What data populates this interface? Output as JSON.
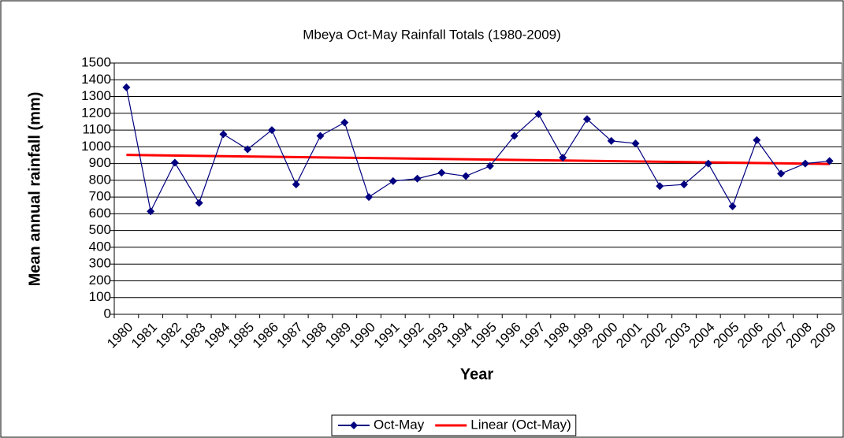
{
  "chart_data": {
    "type": "line",
    "title": "Mbeya Oct-May Rainfall Totals (1980-2009)",
    "xlabel": "Year",
    "ylabel": "Mean annual rainfall (mm)",
    "categories": [
      "1980",
      "1981",
      "1982",
      "1983",
      "1984",
      "1985",
      "1986",
      "1987",
      "1988",
      "1989",
      "1990",
      "1991",
      "1992",
      "1993",
      "1994",
      "1995",
      "1996",
      "1997",
      "1998",
      "1999",
      "2000",
      "2001",
      "2002",
      "2003",
      "2004",
      "2005",
      "2006",
      "2007",
      "2008",
      "2009"
    ],
    "series": [
      {
        "name": "Oct-May",
        "color": "#000080",
        "values": [
          1355,
          615,
          905,
          665,
          1075,
          985,
          1100,
          775,
          1065,
          1145,
          700,
          795,
          810,
          845,
          825,
          885,
          1065,
          1195,
          935,
          1165,
          1035,
          1020,
          765,
          775,
          900,
          645,
          1040,
          840,
          900,
          915
        ],
        "trendline": {
          "type": "linear",
          "name": "Linear (Oct-May)",
          "color": "#ff0000"
        }
      }
    ],
    "ylim": [
      0,
      1500
    ],
    "yticks": [
      0,
      100,
      200,
      300,
      400,
      500,
      600,
      700,
      800,
      900,
      1000,
      1100,
      1200,
      1300,
      1400,
      1500
    ],
    "grid": true,
    "legend": "bottom"
  }
}
